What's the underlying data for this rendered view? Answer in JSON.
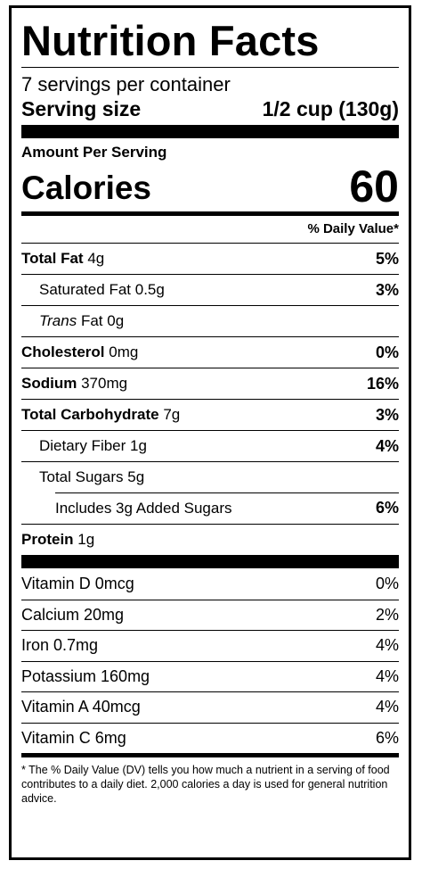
{
  "title": "Nutrition Facts",
  "servings_per_container": "7 servings per container",
  "serving_size": {
    "label": "Serving size",
    "value": "1/2 cup (130g)"
  },
  "amount_per_serving": "Amount Per Serving",
  "calories": {
    "label": "Calories",
    "value": "60"
  },
  "daily_value_header": "% Daily Value*",
  "nutrients": [
    {
      "name": "Total Fat",
      "amount": "4g",
      "dv": "5%"
    },
    {
      "name": "Saturated Fat",
      "amount": "0.5g",
      "dv": "3%"
    },
    {
      "name": "Trans",
      "suffix": "Fat",
      "amount": "0g",
      "dv": ""
    },
    {
      "name": "Cholesterol",
      "amount": "0mg",
      "dv": "0%"
    },
    {
      "name": "Sodium",
      "amount": "370mg",
      "dv": "16%"
    },
    {
      "name": "Total Carbohydrate",
      "amount": "7g",
      "dv": "3%"
    },
    {
      "name": "Dietary Fiber",
      "amount": "1g",
      "dv": "4%"
    },
    {
      "name": "Total Sugars",
      "amount": "5g",
      "dv": ""
    },
    {
      "name": "Includes 3g Added Sugars",
      "amount": "",
      "dv": "6%"
    },
    {
      "name": "Protein",
      "amount": "1g",
      "dv": ""
    }
  ],
  "vitamins": [
    {
      "name": "Vitamin D 0mcg",
      "dv": "0%"
    },
    {
      "name": "Calcium 20mg",
      "dv": "2%"
    },
    {
      "name": "Iron 0.7mg",
      "dv": "4%"
    },
    {
      "name": "Potassium 160mg",
      "dv": "4%"
    },
    {
      "name": "Vitamin A 40mcg",
      "dv": "4%"
    },
    {
      "name": "Vitamin C 6mg",
      "dv": "6%"
    }
  ],
  "footnote": "* The % Daily Value (DV) tells you how much a nutrient in a serving of food contributes to a daily diet. 2,000 calories a day is used for general nutrition advice."
}
